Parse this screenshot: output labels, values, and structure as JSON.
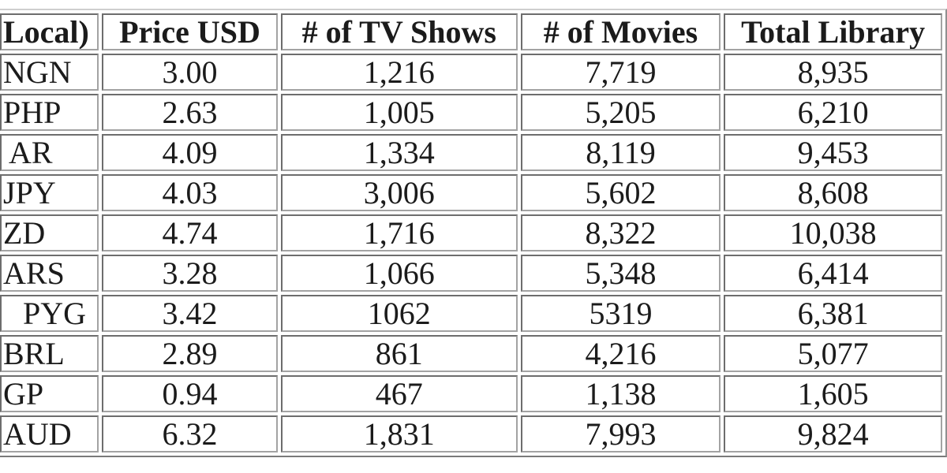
{
  "table": {
    "headers": {
      "local": "Local)",
      "price_usd": "Price USD",
      "tv_shows": "# of TV Shows",
      "movies": "# of Movies",
      "total_library": "Total Library"
    },
    "rows": [
      {
        "local": "NGN",
        "price_usd": "3.00",
        "tv_shows": "1,216",
        "movies": "7,719",
        "total_library": "8,935"
      },
      {
        "local": "PHP",
        "price_usd": "2.63",
        "tv_shows": "1,005",
        "movies": "5,205",
        "total_library": "6,210"
      },
      {
        "local": "AR",
        "price_usd": "4.09",
        "tv_shows": "1,334",
        "movies": "8,119",
        "total_library": "9,453"
      },
      {
        "local": "JPY",
        "price_usd": "4.03",
        "tv_shows": "3,006",
        "movies": "5,602",
        "total_library": "8,608"
      },
      {
        "local": "ZD",
        "price_usd": "4.74",
        "tv_shows": "1,716",
        "movies": "8,322",
        "total_library": "10,038"
      },
      {
        "local": "ARS",
        "price_usd": "3.28",
        "tv_shows": "1,066",
        "movies": "5,348",
        "total_library": "6,414"
      },
      {
        "local": "PYG",
        "price_usd": "3.42",
        "tv_shows": "1062",
        "movies": "5319",
        "total_library": "6,381"
      },
      {
        "local": "BRL",
        "price_usd": "2.89",
        "tv_shows": "861",
        "movies": "4,216",
        "total_library": "5,077"
      },
      {
        "local": "GP",
        "price_usd": "0.94",
        "tv_shows": "467",
        "movies": "1,138",
        "total_library": "1,605"
      },
      {
        "local": "AUD",
        "price_usd": "6.32",
        "tv_shows": "1,831",
        "movies": "7,993",
        "total_library": "9,824"
      }
    ],
    "colors": {
      "cell_border": "#6d6d6d",
      "text": "#1b1b1b",
      "background": "#ffffff"
    }
  }
}
